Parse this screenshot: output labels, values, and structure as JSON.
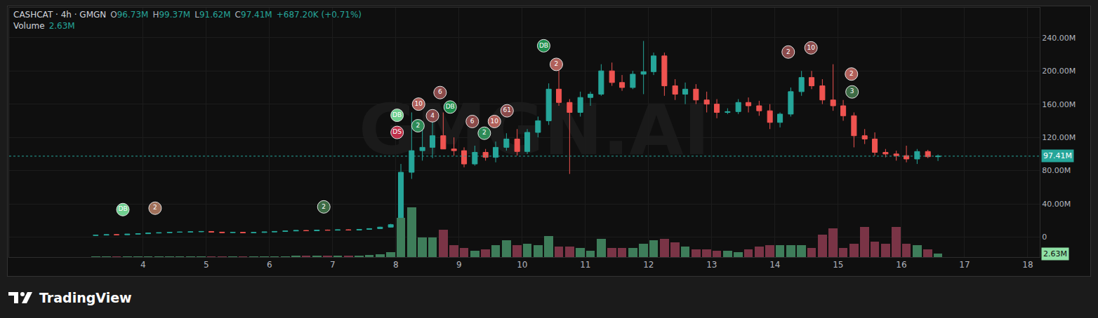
{
  "header": {
    "symbol": "CASHCAT · 4h · GMGN",
    "ohlc": [
      {
        "label": "O",
        "text": "96.73M"
      },
      {
        "label": "H",
        "text": "99.37M"
      },
      {
        "label": "L",
        "text": "91.62M"
      },
      {
        "label": "C",
        "text": "97.41M"
      }
    ],
    "change": "+687.20K (+0.71%)",
    "volume_label": "Volume",
    "volume_text": "2.63M"
  },
  "watermark": "GMGN.AI",
  "footer": "TradingView",
  "chart_data": {
    "type": "candlestick",
    "x": [
      3.25,
      3.42,
      3.58,
      3.75,
      3.92,
      4.08,
      4.25,
      4.42,
      4.58,
      4.75,
      4.92,
      5.08,
      5.25,
      5.42,
      5.58,
      5.75,
      5.92,
      6.08,
      6.25,
      6.42,
      6.58,
      6.75,
      6.92,
      7.08,
      7.25,
      7.42,
      7.58,
      7.75,
      7.92,
      8.08,
      8.25,
      8.42,
      8.58,
      8.75,
      8.92,
      9.08,
      9.25,
      9.42,
      9.58,
      9.75,
      9.92,
      10.08,
      10.25,
      10.42,
      10.58,
      10.75,
      10.92,
      11.08,
      11.25,
      11.42,
      11.58,
      11.75,
      11.92,
      12.08,
      12.25,
      12.42,
      12.58,
      12.75,
      12.92,
      13.08,
      13.25,
      13.42,
      13.58,
      13.75,
      13.92,
      14.08,
      14.25,
      14.42,
      14.58,
      14.75,
      14.92,
      15.08,
      15.25,
      15.42,
      15.58,
      15.75,
      15.92,
      16.08,
      16.25,
      16.42,
      16.58
    ],
    "series": [
      {
        "type": "candlestick",
        "color": {
          "up": "#26a69a",
          "down": "#ef5350"
        },
        "open": [
          2.0,
          2.4,
          3.0,
          2.8,
          3.6,
          4.1,
          4.9,
          5.3,
          5.9,
          6.1,
          6.4,
          6.8,
          6.0,
          5.4,
          5.8,
          5.2,
          5.6,
          6.2,
          6.8,
          7.4,
          8.0,
          7.6,
          8.5,
          8.3,
          8.8,
          8.5,
          9.3,
          10.2,
          12.0,
          15,
          78,
          104,
          108,
          122,
          106,
          104,
          88,
          102,
          96,
          108,
          118,
          103,
          126,
          140,
          178,
          162,
          150,
          168,
          172,
          200,
          186,
          180,
          196,
          199,
          218,
          182,
          172,
          178,
          165,
          160,
          150,
          151,
          162,
          158,
          152,
          138,
          148,
          175,
          192,
          182,
          165,
          158,
          146,
          122,
          118,
          102,
          100,
          98,
          94,
          103,
          96.73
        ],
        "high": [
          2.6,
          3.2,
          3.4,
          3.8,
          4.4,
          5.2,
          5.6,
          6.2,
          6.6,
          6.8,
          7.2,
          7.1,
          6.3,
          6.0,
          6.1,
          5.9,
          6.4,
          7.0,
          7.6,
          8.3,
          8.4,
          8.8,
          9.0,
          9.1,
          9.2,
          9.6,
          10.5,
          12.5,
          16,
          88,
          150,
          130,
          140,
          150,
          120,
          108,
          110,
          106,
          115,
          125,
          130,
          130,
          145,
          185,
          208,
          166,
          175,
          175,
          208,
          210,
          195,
          200,
          236,
          222,
          222,
          190,
          186,
          184,
          175,
          166,
          155,
          166,
          168,
          164,
          160,
          150,
          180,
          200,
          200,
          190,
          208,
          165,
          150,
          130,
          126,
          106,
          104,
          110,
          106,
          105,
          99.37
        ],
        "low": [
          1.8,
          2.2,
          2.6,
          2.7,
          3.3,
          3.9,
          4.5,
          5.0,
          5.4,
          5.7,
          6.0,
          5.8,
          5.0,
          5.1,
          5.0,
          4.9,
          5.3,
          6.0,
          6.5,
          7.1,
          7.3,
          7.4,
          8.0,
          8.0,
          8.2,
          8.3,
          9.0,
          9.8,
          11.5,
          14,
          70,
          92,
          95,
          110,
          98,
          84,
          86,
          92,
          90,
          104,
          98,
          100,
          120,
          135,
          158,
          76,
          145,
          158,
          170,
          182,
          176,
          178,
          172,
          195,
          170,
          165,
          160,
          160,
          150,
          143,
          148,
          148,
          150,
          146,
          130,
          132,
          145,
          170,
          178,
          160,
          152,
          140,
          108,
          112,
          98,
          96,
          92,
          90,
          88,
          95,
          91.62
        ],
        "close": [
          2.4,
          3.0,
          2.8,
          3.6,
          4.1,
          4.9,
          5.3,
          5.9,
          6.1,
          6.4,
          6.8,
          6.0,
          5.4,
          5.8,
          5.2,
          5.6,
          6.2,
          6.8,
          7.4,
          8.0,
          7.6,
          8.5,
          8.3,
          8.8,
          8.5,
          9.3,
          10.2,
          12.0,
          15.0,
          78,
          104,
          108,
          122,
          106,
          104,
          88,
          102,
          96,
          108,
          118,
          103,
          126,
          140,
          178,
          162,
          150,
          168,
          172,
          200,
          186,
          180,
          196,
          199,
          218,
          182,
          172,
          178,
          165,
          160,
          150,
          151,
          162,
          158,
          152,
          138,
          148,
          175,
          192,
          182,
          165,
          158,
          146,
          122,
          118,
          102,
          100,
          98,
          94,
          103,
          96.73,
          97.41
        ]
      },
      {
        "type": "bar",
        "axis": "y2",
        "color": {
          "up": "#3e7d5a",
          "down": "#7a3446"
        },
        "values": [
          0.3,
          0.4,
          0.3,
          0.4,
          0.5,
          0.6,
          0.7,
          0.6,
          0.6,
          0.7,
          0.8,
          0.8,
          0.7,
          0.6,
          0.6,
          0.7,
          0.6,
          0.7,
          0.8,
          0.9,
          1.0,
          0.9,
          1.0,
          1.0,
          0.9,
          1.1,
          1.4,
          2.0,
          4.0,
          30,
          38,
          15,
          15,
          21,
          9,
          7,
          5,
          6,
          9,
          13,
          9,
          10,
          9,
          16,
          8,
          8,
          7,
          5,
          14,
          7,
          7,
          7,
          10,
          13,
          14,
          11,
          8,
          6,
          6,
          5,
          5,
          4,
          6,
          8,
          9,
          9,
          9,
          9,
          7,
          17,
          22,
          7,
          10,
          23,
          12,
          10,
          23,
          10,
          9,
          6,
          2.63
        ]
      }
    ],
    "xlim": [
      1.88,
      18.19
    ],
    "xticks": [
      4,
      5,
      6,
      7,
      8,
      9,
      10,
      11,
      12,
      13,
      14,
      15,
      16,
      17,
      18
    ],
    "ylim": [
      -24,
      276
    ],
    "yticks": [
      0,
      {
        "value": 40,
        "label": "40.00M"
      },
      {
        "value": 80,
        "label": "80.00M"
      },
      {
        "value": 120,
        "label": "120.00M"
      },
      {
        "value": 160,
        "label": "160.00M"
      },
      {
        "value": 200,
        "label": "200.00M"
      },
      {
        "value": 240,
        "label": "240.00M"
      }
    ],
    "y2lim": [
      0,
      190
    ],
    "y2ticks": [],
    "grid": true,
    "last_price": {
      "value": 97.41,
      "label": "97.41M",
      "color": "#26a69a"
    },
    "last_volume": {
      "value": 2.63,
      "label": "2.63M",
      "color": "#8fe0a5"
    },
    "events": [
      {
        "x": 3.68,
        "y": 33.1,
        "label": "DB",
        "color": "#6fcf8f"
      },
      {
        "x": 4.19,
        "y": 34.8,
        "label": "2",
        "color": "#a0705a"
      },
      {
        "x": 6.86,
        "y": 36.4,
        "label": "2",
        "color": "#3d6b45"
      },
      {
        "x": 8.02,
        "y": 146.6,
        "label": "DB",
        "color": "#6fcf8f"
      },
      {
        "x": 8.02,
        "y": 125.9,
        "label": "DS",
        "color": "#c0304a"
      },
      {
        "x": 8.36,
        "y": 160,
        "label": "10",
        "color": "#b0605a"
      },
      {
        "x": 8.35,
        "y": 134,
        "label": "2",
        "color": "#2e8b57"
      },
      {
        "x": 8.58,
        "y": 146,
        "label": "4",
        "color": "#8a4a4a"
      },
      {
        "x": 8.7,
        "y": 173.9,
        "label": "6",
        "color": "#8a4a4a"
      },
      {
        "x": 8.86,
        "y": 156.5,
        "label": "DB",
        "color": "#1f8f4e"
      },
      {
        "x": 9.21,
        "y": 139.1,
        "label": "6",
        "color": "#8a4a4a"
      },
      {
        "x": 9.4,
        "y": 125,
        "label": "2",
        "color": "#2e8b57"
      },
      {
        "x": 9.56,
        "y": 139.1,
        "label": "10",
        "color": "#b0605a"
      },
      {
        "x": 9.76,
        "y": 152,
        "label": "61",
        "color": "#8a4a4a"
      },
      {
        "x": 10.34,
        "y": 230.2,
        "label": "DB",
        "color": "#1f8f4e"
      },
      {
        "x": 10.54,
        "y": 207.8,
        "label": "2",
        "color": "#b0605a"
      },
      {
        "x": 14.21,
        "y": 222.7,
        "label": "2",
        "color": "#8a4a4a"
      },
      {
        "x": 14.57,
        "y": 227.7,
        "label": "10",
        "color": "#8a4a4a"
      },
      {
        "x": 15.21,
        "y": 196.2,
        "label": "2",
        "color": "#b0605a"
      },
      {
        "x": 15.22,
        "y": 174.7,
        "label": "3",
        "color": "#3d6b45"
      }
    ]
  }
}
